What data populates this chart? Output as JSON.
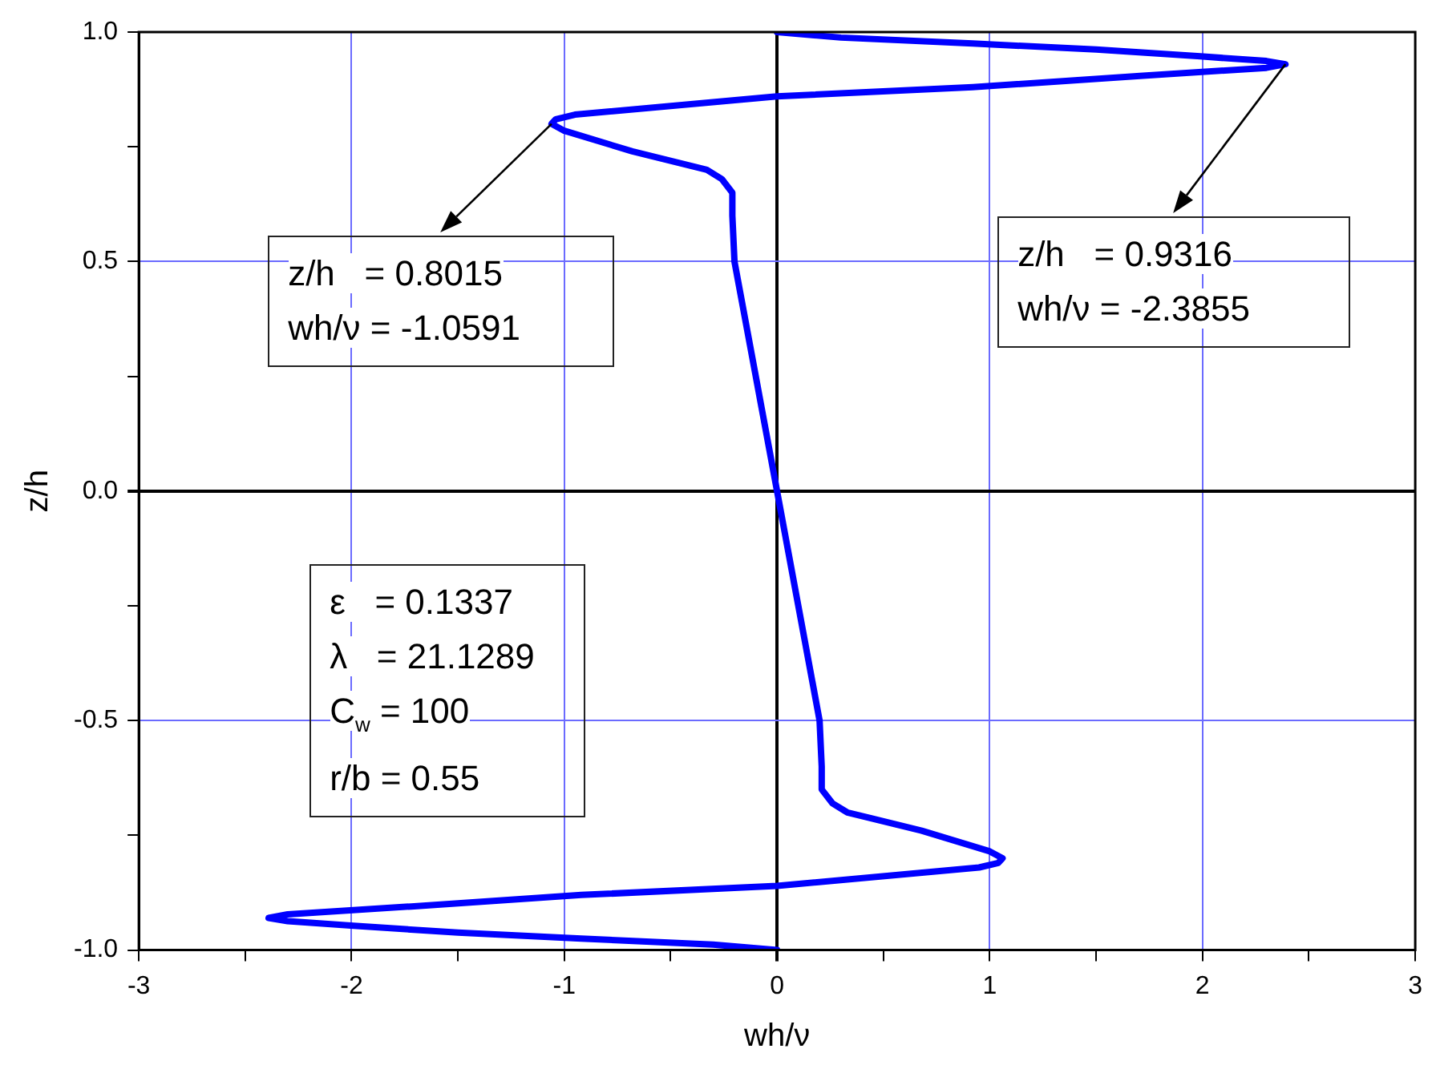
{
  "chart_data": {
    "type": "line",
    "xlabel": "wh/ν",
    "ylabel": "z/h",
    "xlim": [
      -3,
      3
    ],
    "ylim": [
      -1,
      1
    ],
    "xticks": [
      -3,
      {
        "value": -2.5,
        "label": null
      },
      -2,
      {
        "value": -1.5,
        "label": null
      },
      -1,
      {
        "value": -0.5,
        "label": null
      },
      0,
      {
        "value": 0.5,
        "label": null
      },
      1,
      {
        "value": 1.5,
        "label": null
      },
      2,
      {
        "value": 2.5,
        "label": null
      },
      3
    ],
    "yticks": [
      {
        "value": -1,
        "label": "-1.0"
      },
      {
        "value": -0.75,
        "label": null
      },
      {
        "value": -0.5,
        "label": "-0.5"
      },
      {
        "value": -0.25,
        "label": null
      },
      {
        "value": 0,
        "label": "0.0"
      },
      {
        "value": 0.25,
        "label": null
      },
      {
        "value": 0.5,
        "label": "0.5"
      },
      {
        "value": 0.75,
        "label": null
      },
      {
        "value": 1,
        "label": "1.0"
      }
    ],
    "grid": true,
    "legend": false,
    "series": [
      {
        "color": "#0000ff",
        "x": [
          0,
          -0.3,
          -0.92,
          -1.5,
          -1.99,
          -2.3,
          -2.39,
          -2.3,
          -1.72,
          -0.92,
          0,
          0.95,
          1.04,
          1.06,
          1.0,
          0.68,
          0.33,
          0.26,
          0.21,
          0.21,
          0.2,
          0.1,
          0,
          -0.1,
          -0.2,
          -0.21,
          -0.21,
          -0.26,
          -0.33,
          -0.68,
          -1.0,
          -1.06,
          -1.04,
          -0.95,
          0,
          0.92,
          1.72,
          2.3,
          2.39,
          2.3,
          1.99,
          1.5,
          0.92,
          0.3,
          0
        ],
        "values": [
          -1,
          -0.988,
          -0.975,
          -0.962,
          -0.947,
          -0.937,
          -0.93,
          -0.922,
          -0.905,
          -0.88,
          -0.86,
          -0.82,
          -0.81,
          -0.8,
          -0.785,
          -0.74,
          -0.7,
          -0.68,
          -0.65,
          -0.6,
          -0.5,
          -0.25,
          0,
          0.25,
          0.5,
          0.6,
          0.65,
          0.68,
          0.7,
          0.74,
          0.785,
          0.8,
          0.81,
          0.82,
          0.86,
          0.88,
          0.905,
          0.922,
          0.93,
          0.937,
          0.947,
          0.962,
          0.975,
          0.988,
          1
        ]
      }
    ],
    "annotations": [
      {
        "text": "z/h   = 0.8015\nwh/ν = -1.0591",
        "x": -1.06,
        "y": 0.8
      },
      {
        "text": "z/h   = 0.9316\nwh/ν = -2.3855",
        "x": 2.39,
        "y": 0.93
      },
      "ε   = 0.1337\nλ   = 21.1289\nC$_{w}$ = 100\nr/b = 0.55"
    ]
  }
}
